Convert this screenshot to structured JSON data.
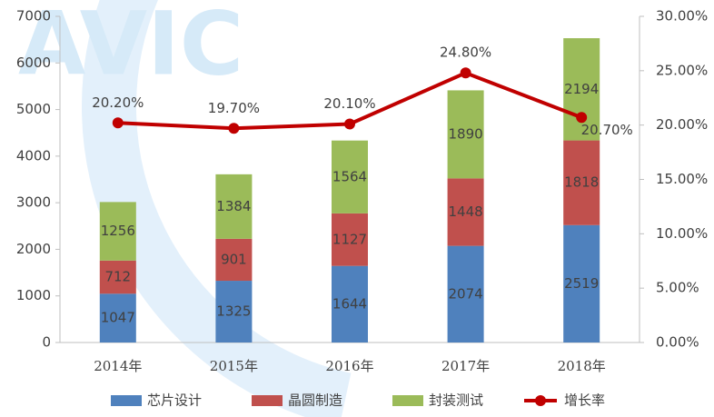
{
  "chart_data": {
    "type": "bar",
    "watermark": "AVIC",
    "categories": [
      "2014年",
      "2015年",
      "2016年",
      "2017年",
      "2018年"
    ],
    "series": [
      {
        "name": "芯片设计",
        "color": "#4f81bd",
        "values": [
          1047,
          1325,
          1644,
          2074,
          2519
        ]
      },
      {
        "name": "晶圆制造",
        "color": "#c0504d",
        "values": [
          712,
          901,
          1127,
          1448,
          1818
        ]
      },
      {
        "name": "封装测试",
        "color": "#9bbb59",
        "values": [
          1256,
          1384,
          1564,
          1890,
          2194
        ]
      },
      {
        "name": "增长率",
        "type": "line",
        "axis": "y2",
        "color": "#c00000",
        "values": [
          20.2,
          19.7,
          20.1,
          24.8,
          20.7
        ],
        "value_labels": [
          "20.20%",
          "19.70%",
          "20.10%",
          "24.80%",
          "20.70%"
        ]
      }
    ],
    "ylim": [
      0,
      7000
    ],
    "yticks": [
      0,
      1000,
      2000,
      3000,
      4000,
      5000,
      6000,
      7000
    ],
    "y2lim": [
      0,
      30
    ],
    "y2ticks": [
      {
        "value": 0,
        "label": "0.00%"
      },
      {
        "value": 5,
        "label": "5.00%"
      },
      {
        "value": 10,
        "label": "10.00%"
      },
      {
        "value": 15,
        "label": "15.00%"
      },
      {
        "value": 20,
        "label": "20.00%"
      },
      {
        "value": 25,
        "label": "25.00%"
      },
      {
        "value": 30,
        "label": "30.00%"
      }
    ],
    "legend": "bottom"
  }
}
